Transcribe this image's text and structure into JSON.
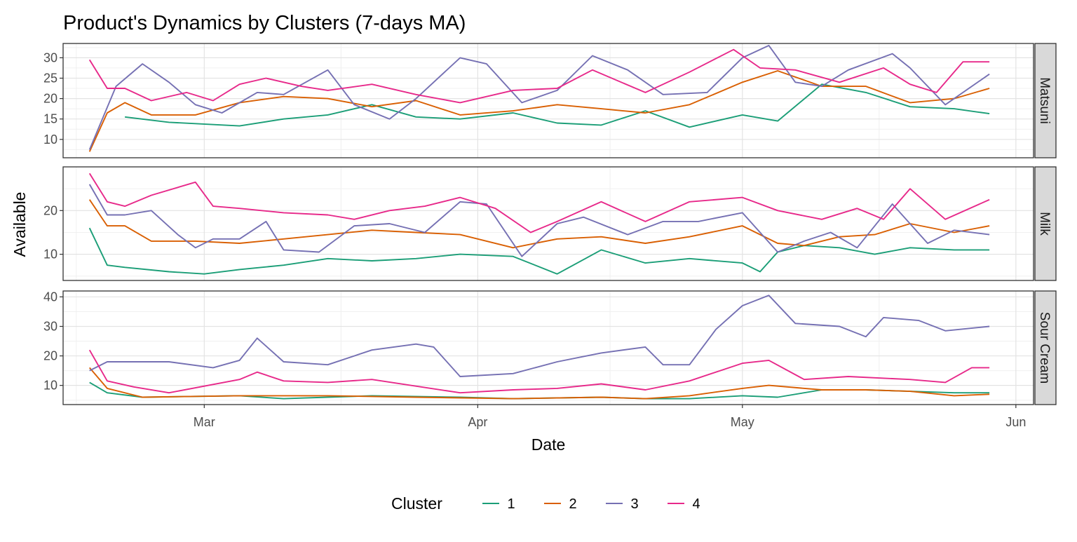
{
  "chart_data": {
    "type": "line",
    "title": "Product's Dynamics by Clusters (7-days MA)",
    "xlabel": "Date",
    "ylabel": "Available",
    "x_ticks": [
      "Mar",
      "Apr",
      "May",
      "Jun"
    ],
    "x_tick_dates": [
      "2023-03-01",
      "2023-04-01",
      "2023-05-01",
      "2023-06-01"
    ],
    "x_range": [
      "2023-02-13",
      "2023-06-03"
    ],
    "legend": {
      "title": "Cluster",
      "placement": "bottom",
      "items": [
        "1",
        "2",
        "3",
        "4"
      ]
    },
    "colors": {
      "1": "#1B9E77",
      "2": "#D95F02",
      "3": "#7570B3",
      "4": "#E7298A"
    },
    "grid": true,
    "facets": [
      {
        "label": "Matsuni",
        "y_ticks": [
          10,
          15,
          20,
          25,
          30
        ],
        "ylim": [
          5.5,
          33.5
        ],
        "series": [
          {
            "name": "1",
            "x": [
              "2023-02-20",
              "2023-02-25",
              "2023-03-05",
              "2023-03-10",
              "2023-03-15",
              "2023-03-20",
              "2023-03-25",
              "2023-03-30",
              "2023-04-05",
              "2023-04-10",
              "2023-04-15",
              "2023-04-20",
              "2023-04-25",
              "2023-05-01",
              "2023-05-05",
              "2023-05-10",
              "2023-05-15",
              "2023-05-20",
              "2023-05-25",
              "2023-05-29"
            ],
            "y": [
              15.5,
              14.2,
              13.3,
              15.0,
              16.0,
              18.5,
              15.5,
              15.0,
              16.5,
              14.0,
              13.5,
              17.0,
              13.0,
              16.0,
              14.5,
              23.5,
              21.5,
              18.0,
              17.5,
              16.3
            ]
          },
          {
            "name": "2",
            "x": [
              "2023-02-16",
              "2023-02-18",
              "2023-02-20",
              "2023-02-23",
              "2023-02-28",
              "2023-03-05",
              "2023-03-10",
              "2023-03-15",
              "2023-03-20",
              "2023-03-25",
              "2023-03-30",
              "2023-04-05",
              "2023-04-10",
              "2023-04-15",
              "2023-04-20",
              "2023-04-25",
              "2023-05-01",
              "2023-05-05",
              "2023-05-10",
              "2023-05-15",
              "2023-05-20",
              "2023-05-25",
              "2023-05-29"
            ],
            "y": [
              7.0,
              16.5,
              19.0,
              16.0,
              16.0,
              19.0,
              20.5,
              20.0,
              18.0,
              19.5,
              16.0,
              17.0,
              18.5,
              17.5,
              16.5,
              18.5,
              24.0,
              26.8,
              23.0,
              23.0,
              19.0,
              20.0,
              22.5
            ]
          },
          {
            "name": "3",
            "x": [
              "2023-02-16",
              "2023-02-19",
              "2023-02-22",
              "2023-02-25",
              "2023-02-28",
              "2023-03-03",
              "2023-03-07",
              "2023-03-10",
              "2023-03-15",
              "2023-03-18",
              "2023-03-22",
              "2023-03-25",
              "2023-03-30",
              "2023-04-02",
              "2023-04-06",
              "2023-04-10",
              "2023-04-14",
              "2023-04-18",
              "2023-04-22",
              "2023-04-27",
              "2023-05-01",
              "2023-05-04",
              "2023-05-07",
              "2023-05-10",
              "2023-05-13",
              "2023-05-18",
              "2023-05-20",
              "2023-05-24",
              "2023-05-29"
            ],
            "y": [
              7.5,
              23.0,
              28.5,
              24.0,
              18.5,
              16.5,
              21.5,
              21.0,
              27.0,
              18.5,
              15.0,
              20.0,
              30.0,
              28.5,
              19.0,
              22.0,
              30.5,
              27.0,
              21.0,
              21.5,
              30.0,
              33.0,
              24.0,
              23.0,
              27.0,
              31.0,
              27.5,
              18.5,
              26.0
            ]
          },
          {
            "name": "4",
            "x": [
              "2023-02-16",
              "2023-02-18",
              "2023-02-20",
              "2023-02-23",
              "2023-02-27",
              "2023-03-02",
              "2023-03-05",
              "2023-03-08",
              "2023-03-12",
              "2023-03-15",
              "2023-03-20",
              "2023-03-25",
              "2023-03-30",
              "2023-04-05",
              "2023-04-10",
              "2023-04-14",
              "2023-04-20",
              "2023-04-25",
              "2023-04-30",
              "2023-05-03",
              "2023-05-07",
              "2023-05-12",
              "2023-05-17",
              "2023-05-20",
              "2023-05-23",
              "2023-05-26",
              "2023-05-29"
            ],
            "y": [
              29.5,
              22.5,
              22.5,
              19.5,
              21.5,
              19.5,
              23.5,
              25.0,
              23.0,
              22.0,
              23.5,
              21.0,
              19.0,
              22.0,
              22.5,
              27.0,
              21.5,
              26.5,
              32.0,
              27.5,
              27.0,
              24.0,
              27.5,
              23.5,
              21.5,
              29.0,
              29.0
            ]
          }
        ]
      },
      {
        "label": "Milk",
        "y_ticks": [
          10,
          20
        ],
        "ylim": [
          4.0,
          30.0
        ],
        "series": [
          {
            "name": "1",
            "x": [
              "2023-02-16",
              "2023-02-18",
              "2023-02-20",
              "2023-02-25",
              "2023-03-01",
              "2023-03-05",
              "2023-03-10",
              "2023-03-15",
              "2023-03-20",
              "2023-03-25",
              "2023-03-30",
              "2023-04-05",
              "2023-04-10",
              "2023-04-15",
              "2023-04-20",
              "2023-04-25",
              "2023-05-01",
              "2023-05-03",
              "2023-05-05",
              "2023-05-08",
              "2023-05-12",
              "2023-05-16",
              "2023-05-20",
              "2023-05-25",
              "2023-05-29"
            ],
            "y": [
              16.0,
              7.5,
              7.0,
              6.0,
              5.5,
              6.5,
              7.5,
              9.0,
              8.5,
              9.0,
              10.0,
              9.5,
              5.5,
              11.0,
              8.0,
              9.0,
              8.0,
              6.0,
              10.5,
              12.0,
              11.5,
              10.0,
              11.5,
              11.0,
              11.0
            ]
          },
          {
            "name": "2",
            "x": [
              "2023-02-16",
              "2023-02-18",
              "2023-02-20",
              "2023-02-23",
              "2023-02-28",
              "2023-03-05",
              "2023-03-10",
              "2023-03-15",
              "2023-03-20",
              "2023-03-25",
              "2023-03-30",
              "2023-04-05",
              "2023-04-10",
              "2023-04-15",
              "2023-04-20",
              "2023-04-25",
              "2023-05-01",
              "2023-05-05",
              "2023-05-08",
              "2023-05-12",
              "2023-05-16",
              "2023-05-20",
              "2023-05-25",
              "2023-05-29"
            ],
            "y": [
              22.5,
              16.5,
              16.5,
              13.0,
              13.0,
              12.5,
              13.5,
              14.5,
              15.5,
              15.0,
              14.5,
              11.5,
              13.5,
              14.0,
              12.5,
              14.0,
              16.5,
              12.5,
              12.0,
              14.0,
              14.5,
              17.0,
              15.0,
              16.5
            ]
          },
          {
            "name": "3",
            "x": [
              "2023-02-16",
              "2023-02-18",
              "2023-02-20",
              "2023-02-23",
              "2023-02-26",
              "2023-02-28",
              "2023-03-02",
              "2023-03-05",
              "2023-03-08",
              "2023-03-10",
              "2023-03-14",
              "2023-03-18",
              "2023-03-22",
              "2023-03-26",
              "2023-03-30",
              "2023-04-02",
              "2023-04-06",
              "2023-04-10",
              "2023-04-13",
              "2023-04-18",
              "2023-04-22",
              "2023-04-26",
              "2023-05-01",
              "2023-05-05",
              "2023-05-08",
              "2023-05-11",
              "2023-05-14",
              "2023-05-18",
              "2023-05-22",
              "2023-05-25",
              "2023-05-29"
            ],
            "y": [
              26.0,
              19.0,
              19.0,
              20.0,
              14.5,
              11.5,
              13.5,
              13.5,
              17.5,
              11.0,
              10.5,
              16.5,
              17.0,
              15.0,
              22.0,
              21.5,
              9.5,
              17.0,
              18.5,
              14.5,
              17.5,
              17.5,
              19.5,
              10.5,
              13.0,
              15.0,
              11.5,
              21.5,
              12.5,
              15.5,
              14.5
            ]
          },
          {
            "name": "4",
            "x": [
              "2023-02-16",
              "2023-02-18",
              "2023-02-20",
              "2023-02-23",
              "2023-02-28",
              "2023-03-02",
              "2023-03-05",
              "2023-03-10",
              "2023-03-15",
              "2023-03-18",
              "2023-03-22",
              "2023-03-26",
              "2023-03-30",
              "2023-04-03",
              "2023-04-07",
              "2023-04-10",
              "2023-04-15",
              "2023-04-20",
              "2023-04-25",
              "2023-05-01",
              "2023-05-05",
              "2023-05-10",
              "2023-05-14",
              "2023-05-17",
              "2023-05-20",
              "2023-05-24",
              "2023-05-29"
            ],
            "y": [
              28.5,
              22.0,
              21.0,
              23.5,
              26.5,
              21.0,
              20.5,
              19.5,
              19.0,
              18.0,
              20.0,
              21.0,
              23.0,
              20.5,
              15.0,
              17.5,
              22.0,
              17.5,
              22.0,
              23.0,
              20.0,
              18.0,
              20.5,
              18.0,
              25.0,
              18.0,
              22.5
            ]
          }
        ]
      },
      {
        "label": "Sour Cream",
        "y_ticks": [
          10,
          20,
          30,
          40
        ],
        "ylim": [
          3.5,
          42.0
        ],
        "series": [
          {
            "name": "1",
            "x": [
              "2023-02-16",
              "2023-02-18",
              "2023-02-22",
              "2023-03-05",
              "2023-03-10",
              "2023-03-20",
              "2023-03-30",
              "2023-04-05",
              "2023-04-15",
              "2023-04-20",
              "2023-04-25",
              "2023-05-01",
              "2023-05-05",
              "2023-05-10",
              "2023-05-15",
              "2023-05-20",
              "2023-05-25",
              "2023-05-29"
            ],
            "y": [
              11.0,
              7.5,
              6.0,
              6.5,
              5.5,
              6.5,
              6.0,
              5.5,
              6.0,
              5.5,
              5.5,
              6.5,
              6.0,
              8.5,
              8.5,
              8.0,
              7.5,
              7.5
            ]
          },
          {
            "name": "2",
            "x": [
              "2023-02-16",
              "2023-02-18",
              "2023-02-22",
              "2023-03-05",
              "2023-03-15",
              "2023-03-25",
              "2023-04-05",
              "2023-04-15",
              "2023-04-20",
              "2023-04-25",
              "2023-05-01",
              "2023-05-04",
              "2023-05-10",
              "2023-05-15",
              "2023-05-20",
              "2023-05-25",
              "2023-05-29"
            ],
            "y": [
              16.0,
              9.0,
              6.0,
              6.5,
              6.5,
              6.0,
              5.5,
              6.0,
              5.5,
              6.5,
              9.0,
              10.0,
              8.5,
              8.5,
              8.0,
              6.5,
              7.0
            ]
          },
          {
            "name": "3",
            "x": [
              "2023-02-16",
              "2023-02-18",
              "2023-02-25",
              "2023-03-02",
              "2023-03-05",
              "2023-03-07",
              "2023-03-10",
              "2023-03-15",
              "2023-03-20",
              "2023-03-25",
              "2023-03-27",
              "2023-03-30",
              "2023-04-05",
              "2023-04-10",
              "2023-04-15",
              "2023-04-20",
              "2023-04-22",
              "2023-04-25",
              "2023-04-28",
              "2023-05-01",
              "2023-05-04",
              "2023-05-07",
              "2023-05-12",
              "2023-05-15",
              "2023-05-17",
              "2023-05-21",
              "2023-05-24",
              "2023-05-29"
            ],
            "y": [
              15.0,
              18.0,
              18.0,
              16.0,
              18.5,
              26.0,
              18.0,
              17.0,
              22.0,
              24.0,
              23.0,
              13.0,
              14.0,
              18.0,
              21.0,
              23.0,
              17.0,
              17.0,
              29.0,
              37.0,
              40.5,
              31.0,
              30.0,
              26.5,
              33.0,
              32.0,
              28.5,
              30.0
            ]
          },
          {
            "name": "4",
            "x": [
              "2023-02-16",
              "2023-02-18",
              "2023-02-21",
              "2023-02-25",
              "2023-03-05",
              "2023-03-07",
              "2023-03-10",
              "2023-03-15",
              "2023-03-20",
              "2023-03-30",
              "2023-04-05",
              "2023-04-10",
              "2023-04-15",
              "2023-04-20",
              "2023-04-25",
              "2023-05-01",
              "2023-05-04",
              "2023-05-08",
              "2023-05-13",
              "2023-05-20",
              "2023-05-24",
              "2023-05-27",
              "2023-05-29"
            ],
            "y": [
              22.0,
              11.5,
              9.5,
              7.5,
              12.0,
              14.5,
              11.5,
              11.0,
              12.0,
              7.5,
              8.5,
              9.0,
              10.5,
              8.5,
              11.5,
              17.5,
              18.5,
              12.0,
              13.0,
              12.0,
              11.0,
              16.0,
              16.0
            ]
          }
        ]
      }
    ]
  }
}
